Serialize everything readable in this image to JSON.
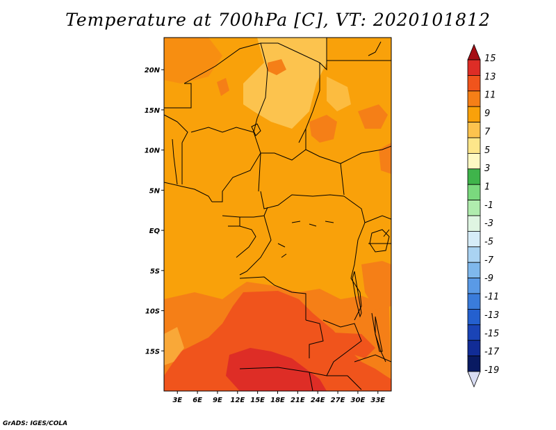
{
  "title": "Temperature at 700hPa [C], VT: 2020101812",
  "credit": "GrADS: IGES/COLA",
  "map": {
    "region": "Central Africa",
    "lon_range": [
      1,
      35
    ],
    "lat_range": [
      -20,
      24
    ],
    "lat_ticks": [
      {
        "value": 20,
        "label": "20N"
      },
      {
        "value": 15,
        "label": "15N"
      },
      {
        "value": 10,
        "label": "10N"
      },
      {
        "value": 5,
        "label": "5N"
      },
      {
        "value": 0,
        "label": "EQ"
      },
      {
        "value": -5,
        "label": "5S"
      },
      {
        "value": -10,
        "label": "10S"
      },
      {
        "value": -15,
        "label": "15S"
      }
    ],
    "lon_ticks": [
      {
        "value": 3,
        "label": "3E"
      },
      {
        "value": 6,
        "label": "6E"
      },
      {
        "value": 9,
        "label": "9E"
      },
      {
        "value": 12,
        "label": "12E"
      },
      {
        "value": 15,
        "label": "15E"
      },
      {
        "value": 18,
        "label": "18E"
      },
      {
        "value": 21,
        "label": "21E"
      },
      {
        "value": 24,
        "label": "24E"
      },
      {
        "value": 27,
        "label": "27E"
      },
      {
        "value": 30,
        "label": "30E"
      },
      {
        "value": 33,
        "label": "33E"
      }
    ]
  },
  "colorbar": {
    "labels": [
      "15",
      "13",
      "11",
      "9",
      "7",
      "5",
      "3",
      "1",
      "-1",
      "-3",
      "-5",
      "-7",
      "-9",
      "-11",
      "-13",
      "-15",
      "-17",
      "-19"
    ],
    "colors": [
      "#a50f15",
      "#de2d26",
      "#f0541c",
      "#f57f17",
      "#f9a10a",
      "#fcc34e",
      "#fde68a",
      "#fef9c3",
      "#3fb44b",
      "#7ad97e",
      "#b0ecae",
      "#dff5e2",
      "#d6ecf8",
      "#aad3f2",
      "#7fb8ec",
      "#5a9ae6",
      "#3a7cdb",
      "#2460cf",
      "#1a44b6",
      "#112c96",
      "#091a62",
      "#d8dcf2"
    ]
  },
  "fields": {
    "background": "#f9a10a",
    "warm_land": "#f57f17",
    "hot": "#f0541c",
    "hottest": "#de2d26",
    "cool": "#fcc34e",
    "border": "#000000"
  }
}
